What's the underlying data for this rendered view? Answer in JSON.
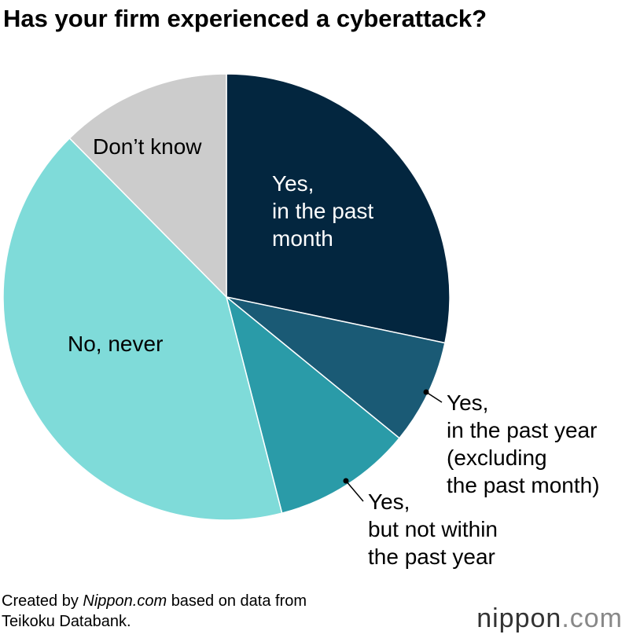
{
  "chart_data": {
    "type": "pie",
    "title": "Has your firm experienced a cyberattack?",
    "categories": [
      [
        "Yes,",
        "in the past",
        "month"
      ],
      [
        "Yes,",
        "in the past year",
        "(excluding",
        "the past month)"
      ],
      [
        "Yes,",
        "but not within",
        "the past year"
      ],
      [
        "No, never"
      ],
      [
        "Don’t know"
      ]
    ],
    "values": [
      28.3,
      7.6,
      10.1,
      41.6,
      12.4
    ],
    "colors": [
      "#03263f",
      "#1a5a75",
      "#2a9ba8",
      "#7fdbd9",
      "#cccccc"
    ],
    "source": [
      "Created by",
      "Nippon.com",
      "based on data from",
      "Teikoku Databank."
    ],
    "logo": [
      "nippon",
      ".com"
    ]
  }
}
